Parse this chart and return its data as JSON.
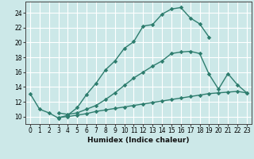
{
  "xlabel": "Humidex (Indice chaleur)",
  "bg_color": "#cce8e8",
  "grid_color": "#ffffff",
  "line_color": "#2e7d6e",
  "xlim": [
    -0.5,
    23.5
  ],
  "ylim": [
    9.0,
    25.5
  ],
  "xticks": [
    0,
    1,
    2,
    3,
    4,
    5,
    6,
    7,
    8,
    9,
    10,
    11,
    12,
    13,
    14,
    15,
    16,
    17,
    18,
    19,
    20,
    21,
    22,
    23
  ],
  "yticks": [
    10,
    12,
    14,
    16,
    18,
    20,
    22,
    24
  ],
  "line1_x": [
    0,
    1,
    2,
    3,
    4,
    5,
    6,
    7,
    8,
    9,
    10,
    11,
    12,
    13,
    14,
    15,
    16,
    17,
    18,
    19
  ],
  "line1_y": [
    13.1,
    11.0,
    10.5,
    9.8,
    10.2,
    11.2,
    13.0,
    14.5,
    16.3,
    17.5,
    19.2,
    20.1,
    22.2,
    22.4,
    23.8,
    24.5,
    24.7,
    23.3,
    22.5,
    20.7
  ],
  "line2_x": [
    3,
    4,
    5,
    6,
    7,
    8,
    9,
    10,
    11,
    12,
    13,
    14,
    15,
    16,
    17,
    18,
    19,
    20,
    21,
    22,
    23
  ],
  "line2_y": [
    10.5,
    10.3,
    10.5,
    11.0,
    11.5,
    12.3,
    13.2,
    14.2,
    15.2,
    16.0,
    16.8,
    17.5,
    18.5,
    18.7,
    18.8,
    18.5,
    15.7,
    13.7,
    15.8,
    14.3,
    13.2
  ],
  "line3_x": [
    3,
    4,
    5,
    6,
    7,
    8,
    9,
    10,
    11,
    12,
    13,
    14,
    15,
    16,
    17,
    18,
    19,
    20,
    21,
    22,
    23
  ],
  "line3_y": [
    9.9,
    10.0,
    10.2,
    10.4,
    10.7,
    10.9,
    11.1,
    11.3,
    11.5,
    11.7,
    11.9,
    12.1,
    12.3,
    12.5,
    12.7,
    12.9,
    13.1,
    13.2,
    13.3,
    13.4,
    13.2
  ]
}
